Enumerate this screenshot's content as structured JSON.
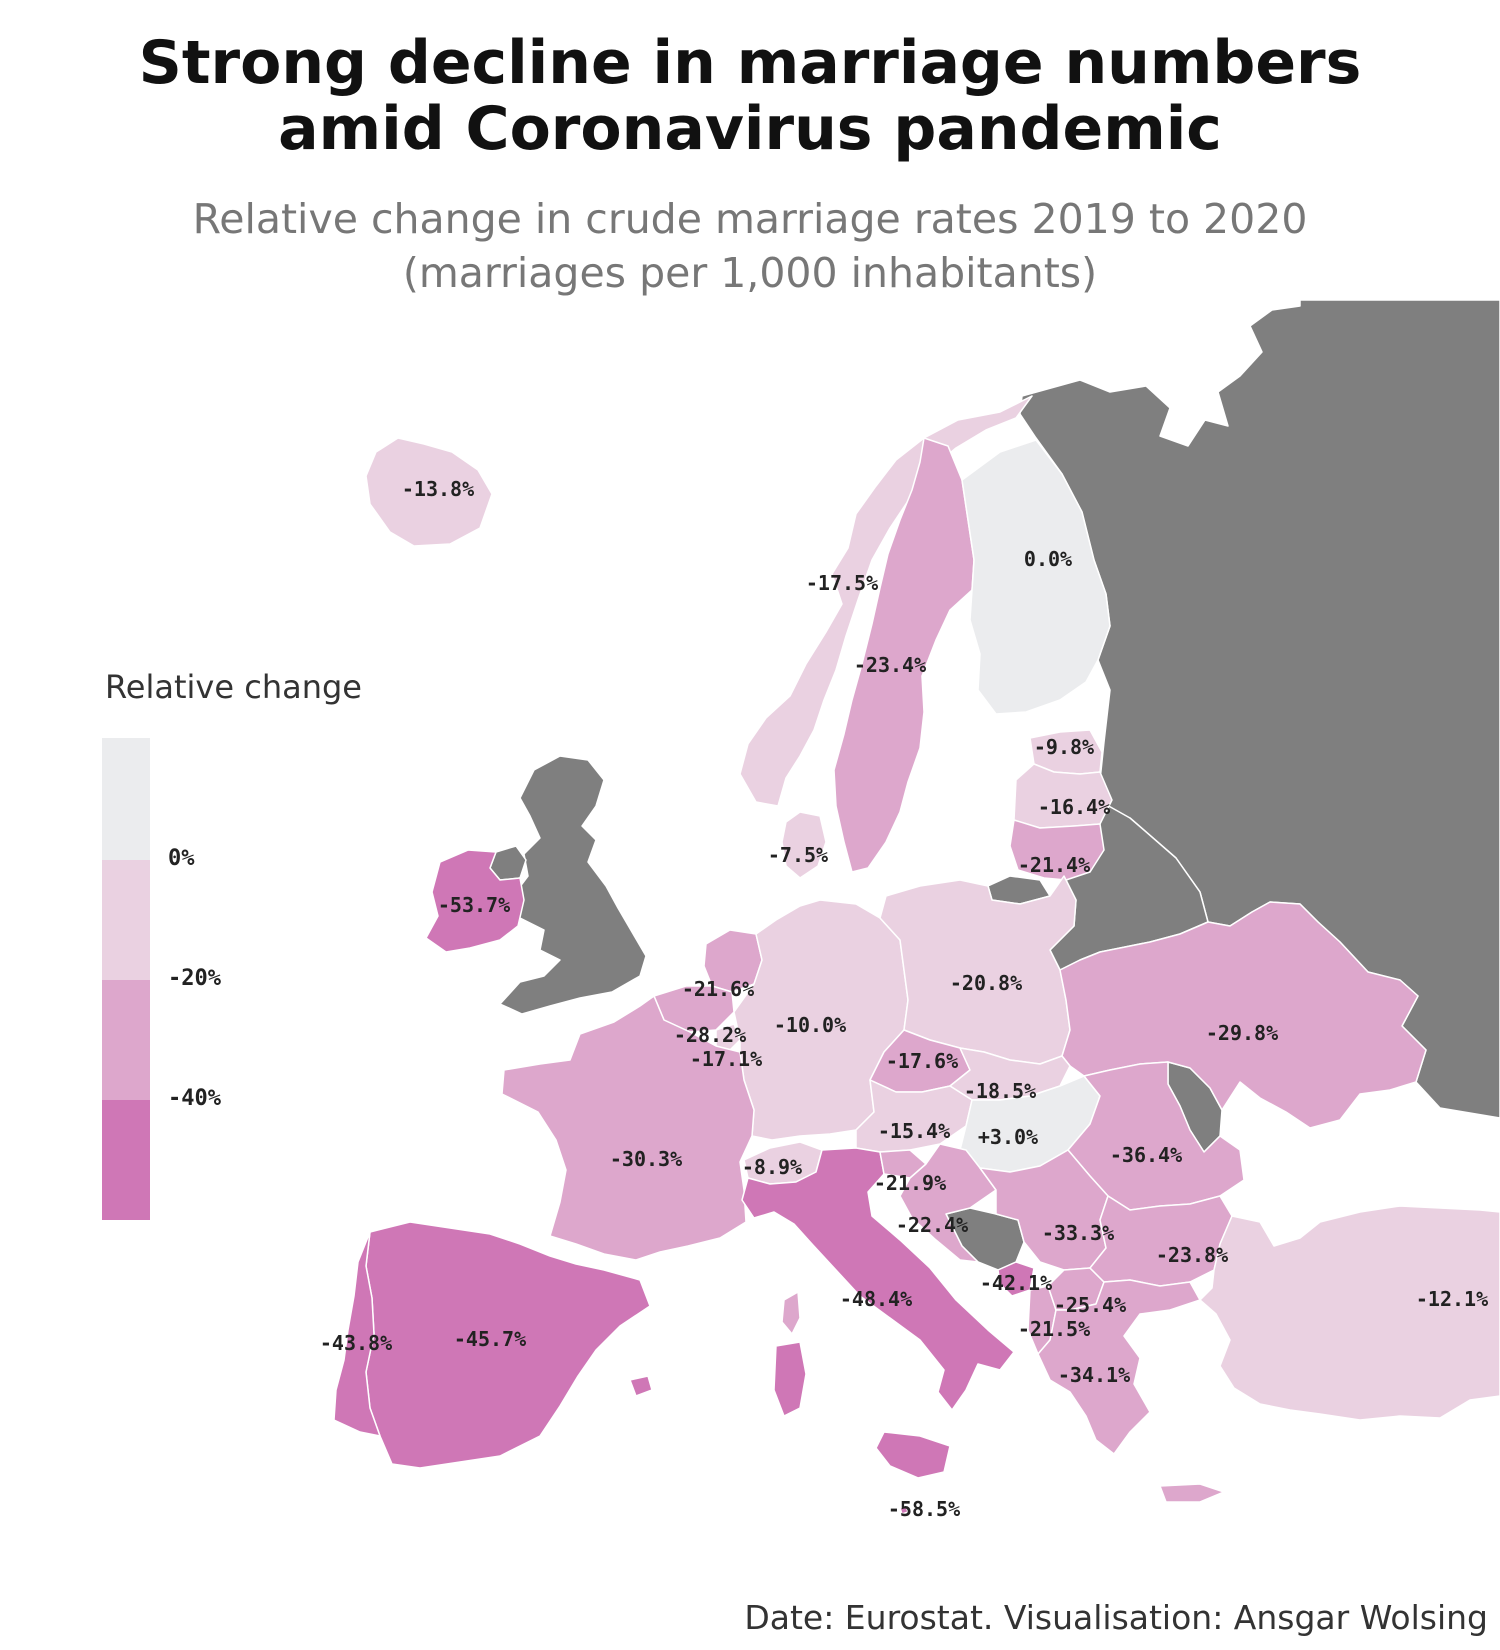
{
  "title": [
    "Strong decline in marriage numbers",
    "amid Coronavirus pandemic"
  ],
  "subtitle": [
    "Relative change in crude marriage rates 2019 to 2020",
    "(marriages per 1,000 inhabitants)"
  ],
  "caption": "Date: Eurostat. Visualisation: Ansgar Wolsing",
  "colors": {
    "no_data": "#7f7f7f",
    "bin_positive": "#ebecee",
    "bin_0_20": "#ead1e1",
    "bin_20_40": "#dda7cc",
    "bin_40_plus": "#cf77b6",
    "water": "#ffffff"
  },
  "legend": {
    "title": "Relative change",
    "labels": [
      "0%",
      "-20%",
      "-40%"
    ]
  },
  "chart_data": {
    "type": "choropleth",
    "value_unit": "%",
    "bins": [
      {
        "range": "> 0%",
        "color": "#ebecee"
      },
      {
        "range": "0% to -20%",
        "color": "#ead1e1"
      },
      {
        "range": "-20% to -40%",
        "color": "#dda7cc"
      },
      {
        "range": "< -40%",
        "color": "#cf77b6"
      }
    ],
    "regions": [
      {
        "id": "IS",
        "label": "-13.8%",
        "value": -13.8
      },
      {
        "id": "NO",
        "label": "-17.5%",
        "value": -17.5
      },
      {
        "id": "SE",
        "label": "-23.4%",
        "value": -23.4
      },
      {
        "id": "FI",
        "label": "0.0%",
        "value": 0.0
      },
      {
        "id": "EE",
        "label": "-9.8%",
        "value": -9.8
      },
      {
        "id": "LV",
        "label": "-16.4%",
        "value": -16.4
      },
      {
        "id": "LT",
        "label": "-21.4%",
        "value": -21.4
      },
      {
        "id": "DK",
        "label": "-7.5%",
        "value": -7.5
      },
      {
        "id": "IE",
        "label": "-53.7%",
        "value": -53.7
      },
      {
        "id": "NL",
        "label": "-21.6%",
        "value": -21.6
      },
      {
        "id": "BE",
        "label": "-28.2%",
        "value": -28.2
      },
      {
        "id": "LU",
        "label": "-17.1%",
        "value": -17.1
      },
      {
        "id": "DE",
        "label": "-10.0%",
        "value": -10.0
      },
      {
        "id": "PL",
        "label": "-20.8%",
        "value": -20.8
      },
      {
        "id": "UA",
        "label": "-29.8%",
        "value": -29.8
      },
      {
        "id": "CZ",
        "label": "-17.6%",
        "value": -17.6
      },
      {
        "id": "SK",
        "label": "-18.5%",
        "value": -18.5
      },
      {
        "id": "AT",
        "label": "-15.4%",
        "value": -15.4
      },
      {
        "id": "HU",
        "label": "+3.0%",
        "value": 3.0
      },
      {
        "id": "RO",
        "label": "-36.4%",
        "value": -36.4
      },
      {
        "id": "FR",
        "label": "-30.3%",
        "value": -30.3
      },
      {
        "id": "CH",
        "label": "-8.9%",
        "value": -8.9
      },
      {
        "id": "SI",
        "label": "-21.9%",
        "value": -21.9
      },
      {
        "id": "HR",
        "label": "-22.4%",
        "value": -22.4
      },
      {
        "id": "RS",
        "label": "-33.3%",
        "value": -33.3
      },
      {
        "id": "BG",
        "label": "-23.8%",
        "value": -23.8
      },
      {
        "id": "ME",
        "label": "-42.1%",
        "value": -42.1
      },
      {
        "id": "MK",
        "label": "-25.4%",
        "value": -25.4
      },
      {
        "id": "AL",
        "label": "-21.5%",
        "value": -21.5
      },
      {
        "id": "GR",
        "label": "-34.1%",
        "value": -34.1
      },
      {
        "id": "IT",
        "label": "-48.4%",
        "value": -48.4
      },
      {
        "id": "MT",
        "label": "-58.5%",
        "value": -58.5
      },
      {
        "id": "ES",
        "label": "-45.7%",
        "value": -45.7
      },
      {
        "id": "PT",
        "label": "-43.8%",
        "value": -43.8
      },
      {
        "id": "TR",
        "label": "-12.1%",
        "value": -12.1
      }
    ]
  }
}
